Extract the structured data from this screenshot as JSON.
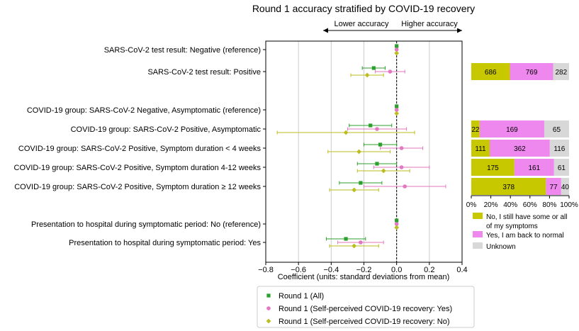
{
  "chart_data": [
    {
      "type": "scatter",
      "title": "Round 1 accuracy stratified by COVID-19 recovery",
      "xlabel": "Coefficient (units: standard deviations from mean)",
      "xlim": [
        -0.8,
        0.4
      ],
      "xticks": [
        "−0.8",
        "−0.6",
        "−0.4",
        "−0.2",
        "0.0",
        "0.2",
        "0.4"
      ],
      "xtick_values": [
        -0.8,
        -0.6,
        -0.4,
        -0.2,
        0.0,
        0.2,
        0.4
      ],
      "grid": true,
      "annotations": {
        "left": "Lower accuracy",
        "right": "Higher accuracy"
      },
      "categories": [
        "SARS-CoV-2 test result: Negative (reference)",
        "SARS-CoV-2 test result: Positive",
        "",
        "COVID-19 group: SARS-CoV-2 Negative, Asymptomatic (reference)",
        "COVID-19 group: SARS-CoV-2 Positive, Asymptomatic",
        "COVID-19 group: SARS-CoV-2 Positive, Symptom duration < 4 weeks",
        "COVID-19 group: SARS-CoV-2 Positive, Symptom duration 4-12 weeks",
        "COVID-19 group: SARS-CoV-2 Positive, Symptom duration ≥ 12 weeks",
        "",
        "Presentation to hospital during symptomatic period: No (reference)",
        "Presentation to hospital during symptomatic period: Yes"
      ],
      "series": [
        {
          "name": "Round 1 (All)",
          "marker": "square",
          "color": "#2ca02c",
          "values": [
            0.0,
            -0.14,
            null,
            0.0,
            -0.16,
            -0.1,
            -0.12,
            -0.22,
            null,
            0.0,
            -0.31
          ],
          "ci_low": [
            0.0,
            -0.21,
            null,
            0.0,
            -0.29,
            -0.2,
            -0.24,
            -0.35,
            null,
            0.0,
            -0.43
          ],
          "ci_high": [
            0.0,
            -0.07,
            null,
            0.0,
            -0.03,
            0.0,
            0.0,
            -0.09,
            null,
            0.0,
            -0.19
          ]
        },
        {
          "name": "Round 1 (Self-perceived COVID-19 recovery: Yes)",
          "marker": "circle",
          "color": "#e377c2",
          "values": [
            0.0,
            -0.04,
            null,
            0.0,
            -0.12,
            0.03,
            0.03,
            0.05,
            null,
            0.0,
            -0.22
          ],
          "ci_low": [
            0.0,
            -0.13,
            null,
            0.0,
            -0.3,
            -0.1,
            -0.14,
            -0.2,
            null,
            0.0,
            -0.36
          ],
          "ci_high": [
            0.0,
            0.05,
            null,
            0.0,
            0.06,
            0.16,
            0.2,
            0.3,
            null,
            0.0,
            -0.08
          ]
        },
        {
          "name": "Round 1 (Self-perceived COVID-19 recovery: No)",
          "marker": "diamond",
          "color": "#bcbd22",
          "values": [
            0.0,
            -0.18,
            null,
            0.0,
            -0.31,
            -0.23,
            -0.08,
            -0.26,
            null,
            0.0,
            -0.26
          ],
          "ci_low": [
            0.0,
            -0.28,
            null,
            0.0,
            -0.73,
            -0.42,
            -0.24,
            -0.41,
            null,
            0.0,
            -0.41
          ],
          "ci_high": [
            0.0,
            -0.08,
            null,
            0.0,
            0.11,
            -0.04,
            0.08,
            -0.11,
            null,
            0.0,
            -0.11
          ]
        }
      ],
      "legend": {
        "position": "bottom-center"
      }
    },
    {
      "type": "bar",
      "orientation": "horizontal",
      "stacked": true,
      "percent": true,
      "rows": [
        "SARS-CoV-2 test result: Positive",
        "COVID-19 group: SARS-CoV-2 Positive, Asymptomatic",
        "COVID-19 group: SARS-CoV-2 Positive, Symptom duration < 4 weeks",
        "COVID-19 group: SARS-CoV-2 Positive, Symptom duration 4-12 weeks",
        "COVID-19 group: SARS-CoV-2 Positive, Symptom duration ≥ 12 weeks"
      ],
      "row_index": [
        1,
        4,
        5,
        6,
        7
      ],
      "series": [
        {
          "name": "No, I still have some or all of my symptoms",
          "color": "#c8c800",
          "values": [
            686,
            22,
            111,
            175,
            378
          ]
        },
        {
          "name": "Yes, I am back to normal",
          "color": "#ee88ee",
          "values": [
            769,
            169,
            362,
            161,
            77
          ]
        },
        {
          "name": "Unknown",
          "color": "#d8d8d8",
          "values": [
            282,
            65,
            116,
            61,
            40
          ]
        }
      ],
      "xticks": [
        "0%",
        "20%",
        "40%",
        "60%",
        "80%",
        "100%"
      ],
      "legend": {
        "position": "bottom"
      }
    }
  ]
}
